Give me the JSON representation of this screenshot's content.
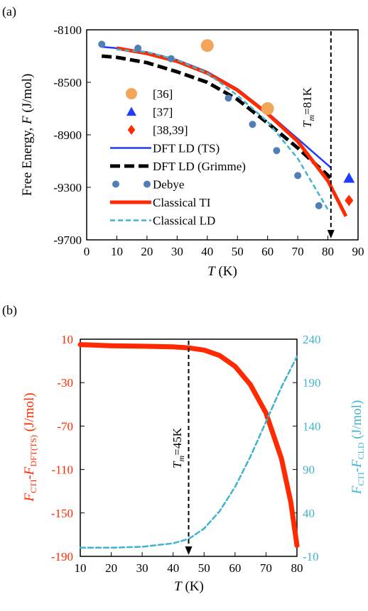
{
  "chart_data": [
    {
      "panel": "(a)",
      "type": "line",
      "ylabel_parts": [
        "Free Energy, ",
        "F",
        " (J/mol)"
      ],
      "xlabel_parts": [
        "T",
        " (K)"
      ],
      "xlim": [
        0,
        90
      ],
      "ylim": [
        -9700,
        -8100
      ],
      "xticks": [
        "0",
        "10",
        "20",
        "30",
        "40",
        "50",
        "60",
        "70",
        "80",
        "90"
      ],
      "yticks": [
        "-8100",
        "-8500",
        "-8900",
        "-9300",
        "-9700"
      ],
      "vline": {
        "x": 81,
        "label_prefix": "T",
        "label_sub": "m",
        "label_suffix": "=81K"
      },
      "grid": false,
      "series": [
        {
          "name": "[36]",
          "kind": "marker",
          "marker": "circle",
          "color": "#f2a65a",
          "points": [
            [
              40,
              -8220
            ],
            [
              60,
              -8700
            ]
          ]
        },
        {
          "name": "[37]",
          "kind": "marker",
          "marker": "triangle",
          "color": "#1f3cff",
          "points": [
            [
              87,
              -9230
            ]
          ]
        },
        {
          "name": "[38,39]",
          "kind": "marker",
          "marker": "diamond",
          "color": "#ff2a00",
          "points": [
            [
              87,
              -9400
            ]
          ]
        },
        {
          "name": "DFT LD (TS)",
          "kind": "line",
          "color": "#1f3cff",
          "dash": "",
          "points": [
            [
              5,
              -8230
            ],
            [
              10,
              -8240
            ],
            [
              20,
              -8270
            ],
            [
              30,
              -8330
            ],
            [
              40,
              -8420
            ],
            [
              50,
              -8550
            ],
            [
              60,
              -8730
            ],
            [
              70,
              -8930
            ],
            [
              81,
              -9150
            ]
          ]
        },
        {
          "name": "DFT LD (Grimme)",
          "kind": "line",
          "color": "#000000",
          "dash": "14,6",
          "points": [
            [
              5,
              -8300
            ],
            [
              10,
              -8310
            ],
            [
              20,
              -8350
            ],
            [
              30,
              -8420
            ],
            [
              40,
              -8500
            ],
            [
              50,
              -8630
            ],
            [
              60,
              -8810
            ],
            [
              70,
              -9000
            ],
            [
              81,
              -9230
            ]
          ]
        },
        {
          "name": "Debye",
          "kind": "dots",
          "color": "#4f7fb5",
          "points": [
            [
              5,
              -8210
            ],
            [
              17,
              -8240
            ],
            [
              28,
              -8320
            ],
            [
              47,
              -8620
            ],
            [
              55,
              -8820
            ],
            [
              63,
              -9020
            ],
            [
              70,
              -9210
            ],
            [
              77,
              -9440
            ]
          ]
        },
        {
          "name": "Classical TI",
          "kind": "line",
          "color": "#ff2a00",
          "dash": "",
          "points": [
            [
              10,
              -8240
            ],
            [
              20,
              -8280
            ],
            [
              30,
              -8340
            ],
            [
              40,
              -8430
            ],
            [
              50,
              -8560
            ],
            [
              60,
              -8740
            ],
            [
              70,
              -8950
            ],
            [
              80,
              -9250
            ],
            [
              86,
              -9520
            ]
          ]
        },
        {
          "name": "Classical LD",
          "kind": "line",
          "color": "#3fb3cf",
          "dash": "7,4",
          "points": [
            [
              10,
              -8250
            ],
            [
              20,
              -8270
            ],
            [
              30,
              -8330
            ],
            [
              40,
              -8430
            ],
            [
              50,
              -8600
            ],
            [
              60,
              -8800
            ],
            [
              70,
              -9080
            ],
            [
              80,
              -9470
            ]
          ]
        }
      ]
    },
    {
      "panel": "(b)",
      "type": "line",
      "xlabel_parts": [
        "T",
        " (K)"
      ],
      "ylabel_left_parts": [
        "F",
        "CTI",
        "-",
        "F",
        "DFT(TS)",
        " (J/mol)"
      ],
      "ylabel_right_parts": [
        "F",
        "CTI",
        "-",
        "F",
        "CLD",
        " (J/mol)"
      ],
      "xlim": [
        10,
        80
      ],
      "ylim_left": [
        -190,
        10
      ],
      "ylim_right": [
        -10,
        240
      ],
      "xticks": [
        "10",
        "20",
        "30",
        "40",
        "50",
        "60",
        "70",
        "80"
      ],
      "yticks_left": [
        "10",
        "-30",
        "-70",
        "-110",
        "-150",
        "-190"
      ],
      "yticks_right": [
        "240",
        "190",
        "140",
        "90",
        "40",
        "-10"
      ],
      "vline": {
        "x": 45,
        "label_prefix": "T",
        "label_sub": "m",
        "label_suffix": "=45K"
      },
      "grid": false,
      "series": [
        {
          "name": "FCTI-FDFT(TS)",
          "axis": "left",
          "color": "#ff2a00",
          "dash": "",
          "points": [
            [
              10,
              5
            ],
            [
              20,
              4
            ],
            [
              30,
              3.5
            ],
            [
              40,
              3
            ],
            [
              45,
              2
            ],
            [
              50,
              0
            ],
            [
              55,
              -5
            ],
            [
              60,
              -15
            ],
            [
              65,
              -32
            ],
            [
              70,
              -58
            ],
            [
              75,
              -100
            ],
            [
              78,
              -140
            ],
            [
              80,
              -180
            ]
          ]
        },
        {
          "name": "FCTI-FCLD",
          "axis": "right",
          "color": "#3fb3cf",
          "dash": "7,4",
          "points": [
            [
              10,
              0
            ],
            [
              20,
              0
            ],
            [
              30,
              1
            ],
            [
              40,
              5
            ],
            [
              45,
              10
            ],
            [
              50,
              22
            ],
            [
              55,
              42
            ],
            [
              60,
              70
            ],
            [
              65,
              105
            ],
            [
              70,
              145
            ],
            [
              75,
              185
            ],
            [
              80,
              220
            ]
          ]
        }
      ]
    }
  ]
}
